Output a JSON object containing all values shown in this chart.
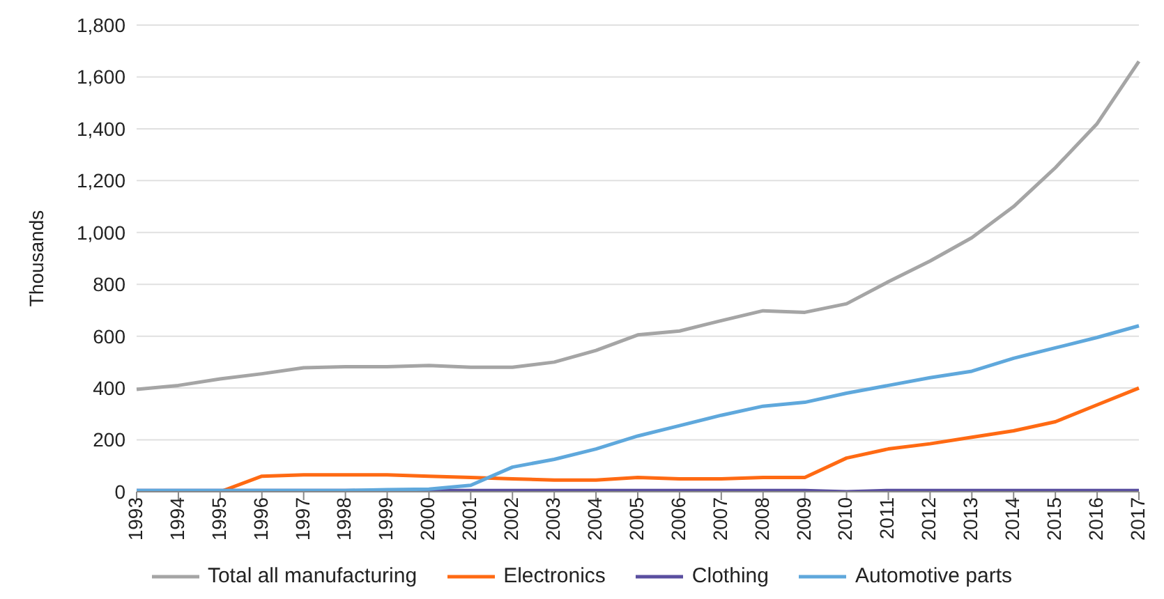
{
  "chart_data": {
    "type": "line",
    "ylabel": "Thousands",
    "categories": [
      "1993",
      "1994",
      "1995",
      "1996",
      "1997",
      "1998",
      "1999",
      "2000",
      "2001",
      "2002",
      "2003",
      "2004",
      "2005",
      "2006",
      "2007",
      "2008",
      "2009",
      "2010",
      "2011",
      "2012",
      "2013",
      "2014",
      "2015",
      "2016",
      "2017"
    ],
    "series": [
      {
        "name": "Total all manufacturing",
        "color": "#a5a5a5",
        "values": [
          395,
          410,
          435,
          455,
          478,
          482,
          482,
          487,
          480,
          480,
          500,
          545,
          605,
          620,
          660,
          698,
          692,
          725,
          810,
          890,
          980,
          1100,
          1250,
          1420,
          1660
        ]
      },
      {
        "name": "Electronics",
        "color": "#ff6a13",
        "values": [
          0,
          0,
          0,
          60,
          65,
          65,
          65,
          60,
          55,
          50,
          45,
          45,
          55,
          50,
          50,
          55,
          55,
          130,
          165,
          185,
          210,
          235,
          270,
          335,
          400
        ]
      },
      {
        "name": "Clothing",
        "color": "#5a4fa0",
        "values": [
          5,
          5,
          5,
          5,
          5,
          5,
          5,
          5,
          5,
          5,
          5,
          5,
          5,
          5,
          5,
          5,
          5,
          0,
          5,
          5,
          5,
          5,
          5,
          5,
          5
        ]
      },
      {
        "name": "Automotive parts",
        "color": "#5fa8dc",
        "values": [
          5,
          5,
          5,
          5,
          5,
          5,
          8,
          10,
          25,
          95,
          125,
          165,
          215,
          255,
          295,
          330,
          345,
          380,
          410,
          440,
          465,
          515,
          555,
          595,
          640
        ]
      }
    ],
    "ylim": [
      0,
      1800
    ],
    "yticks": [
      0,
      200,
      400,
      600,
      800,
      {
        "value": 1000,
        "label": "1,000"
      },
      {
        "value": 1200,
        "label": "1,200"
      },
      {
        "value": 1400,
        "label": "1,400"
      },
      {
        "value": 1600,
        "label": "1,600"
      },
      {
        "value": 1800,
        "label": "1,800"
      }
    ],
    "grid": "y",
    "legend": "bottom",
    "marker": "none",
    "line_style": "solid"
  }
}
